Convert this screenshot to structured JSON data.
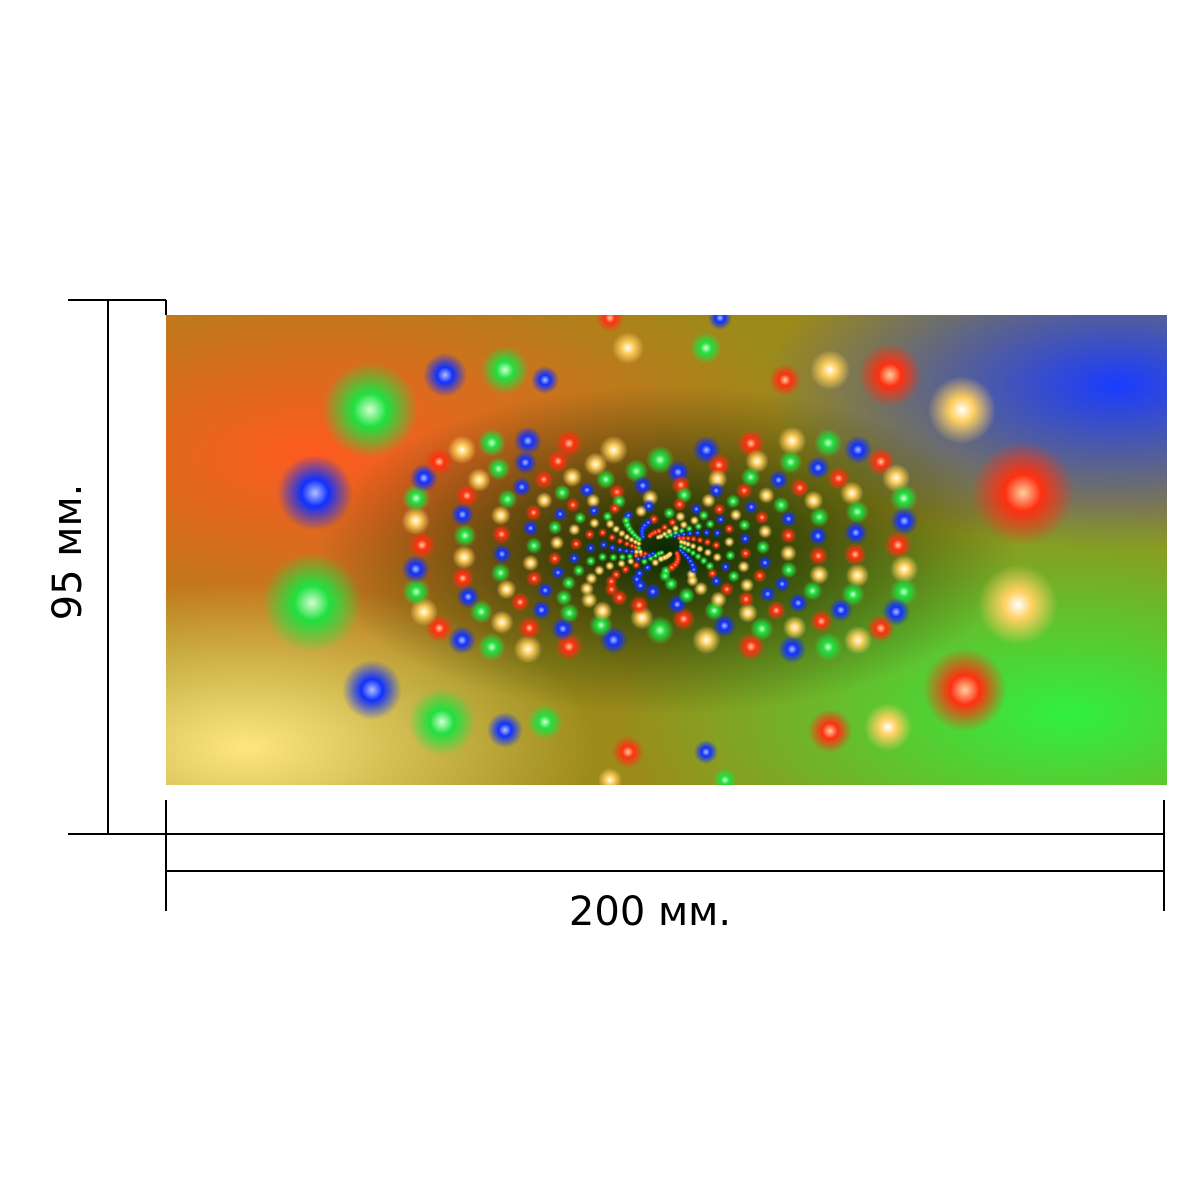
{
  "dimensions": {
    "width_label": "200 мм.",
    "height_label": "95 мм."
  },
  "product_image": {
    "description_icon": "fractal-light-spiral-image",
    "colors": {
      "red": "#ff2a10",
      "green": "#20e040",
      "blue": "#1030ff",
      "yellow": "#ffe090",
      "orange": "#ff7a1a",
      "dark_center": "#3a2a00"
    }
  }
}
